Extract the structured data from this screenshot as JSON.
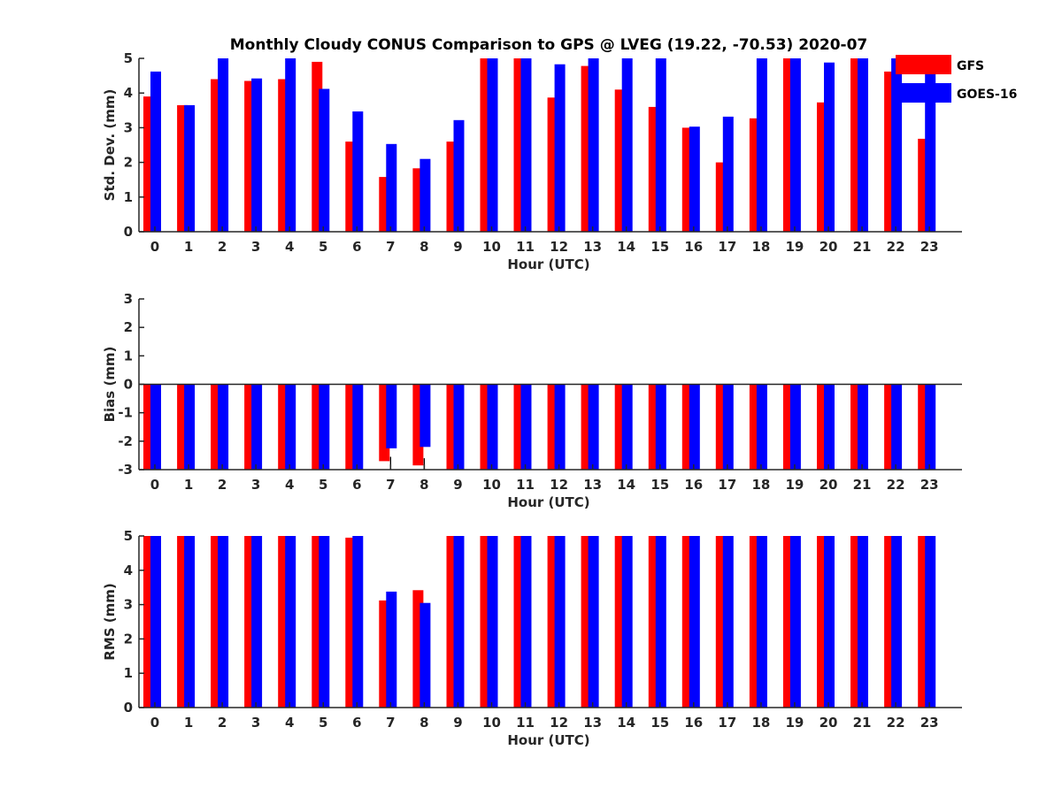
{
  "title": "Monthly Cloudy CONUS Comparison to GPS @ LVEG (19.22, -70.53) 2020-07",
  "colors": {
    "GFS": "#ff0000",
    "GOES-16": "#0000ff",
    "axis": "#262626"
  },
  "chart_data": [
    {
      "type": "bar",
      "categories": [
        "0",
        "1",
        "2",
        "3",
        "4",
        "5",
        "6",
        "7",
        "8",
        "9",
        "10",
        "11",
        "12",
        "13",
        "14",
        "15",
        "16",
        "17",
        "18",
        "19",
        "20",
        "21",
        "22",
        "23"
      ],
      "series": [
        {
          "name": "GFS",
          "values": [
            3.9,
            3.65,
            4.4,
            4.35,
            4.4,
            4.9,
            2.6,
            1.58,
            1.83,
            2.6,
            5,
            5,
            3.87,
            4.78,
            4.1,
            3.6,
            3.0,
            2.0,
            3.27,
            5,
            3.73,
            5,
            4.62,
            2.68
          ]
        },
        {
          "name": "GOES-16",
          "values": [
            4.62,
            3.65,
            5,
            4.42,
            5,
            4.12,
            3.47,
            2.53,
            2.1,
            3.22,
            5,
            5,
            4.83,
            5,
            5,
            5,
            3.03,
            3.32,
            5,
            5,
            4.88,
            5,
            5,
            5
          ]
        }
      ],
      "xlabel": "Hour (UTC)",
      "ylabel": "Std. Dev. (mm)",
      "ylim": [
        0,
        5
      ],
      "yticks": [
        "0",
        "1",
        "2",
        "3",
        "4",
        "5"
      ],
      "legend": {
        "placement": "top-right"
      }
    },
    {
      "type": "bar",
      "categories": [
        "0",
        "1",
        "2",
        "3",
        "4",
        "5",
        "6",
        "7",
        "8",
        "9",
        "10",
        "11",
        "12",
        "13",
        "14",
        "15",
        "16",
        "17",
        "18",
        "19",
        "20",
        "21",
        "22",
        "23"
      ],
      "series": [
        {
          "name": "GFS",
          "values": [
            -3,
            -3,
            -3,
            -3,
            -3,
            -3,
            -3,
            -2.7,
            -2.85,
            -3,
            -3,
            -3,
            -3,
            -3,
            -3,
            -3,
            -3,
            -3,
            -3,
            -3,
            -3,
            -3,
            -3,
            -3
          ]
        },
        {
          "name": "GOES-16",
          "values": [
            -3,
            -3,
            -3,
            -3,
            -3,
            -3,
            -3,
            -2.25,
            -2.2,
            -3,
            -3,
            -3,
            -3,
            -3,
            -3,
            -3,
            -3,
            -3,
            -3,
            -3,
            -3,
            -3,
            -3,
            -3
          ]
        }
      ],
      "error_bars": {
        "categories": [
          "7",
          "8"
        ],
        "upper": [
          -2.55,
          -2.6
        ]
      },
      "xlabel": "Hour (UTC)",
      "ylabel": "Bias (mm)",
      "ylim": [
        -3,
        3
      ],
      "yticks": [
        "-3",
        "-2",
        "-1",
        "0",
        "1",
        "2",
        "3"
      ]
    },
    {
      "type": "bar",
      "categories": [
        "0",
        "1",
        "2",
        "3",
        "4",
        "5",
        "6",
        "7",
        "8",
        "9",
        "10",
        "11",
        "12",
        "13",
        "14",
        "15",
        "16",
        "17",
        "18",
        "19",
        "20",
        "21",
        "22",
        "23"
      ],
      "series": [
        {
          "name": "GFS",
          "values": [
            5,
            5,
            5,
            5,
            5,
            5,
            4.95,
            3.12,
            3.42,
            5,
            5,
            5,
            5,
            5,
            5,
            5,
            5,
            5,
            5,
            5,
            5,
            5,
            5,
            5
          ]
        },
        {
          "name": "GOES-16",
          "values": [
            5,
            5,
            5,
            5,
            5,
            5,
            5,
            3.38,
            3.05,
            5,
            5,
            5,
            5,
            5,
            5,
            5,
            5,
            5,
            5,
            5,
            5,
            5,
            5,
            5
          ]
        }
      ],
      "xlabel": "Hour (UTC)",
      "ylabel": "RMS (mm)",
      "ylim": [
        0,
        5
      ],
      "yticks": [
        "0",
        "1",
        "2",
        "3",
        "4",
        "5"
      ]
    }
  ]
}
